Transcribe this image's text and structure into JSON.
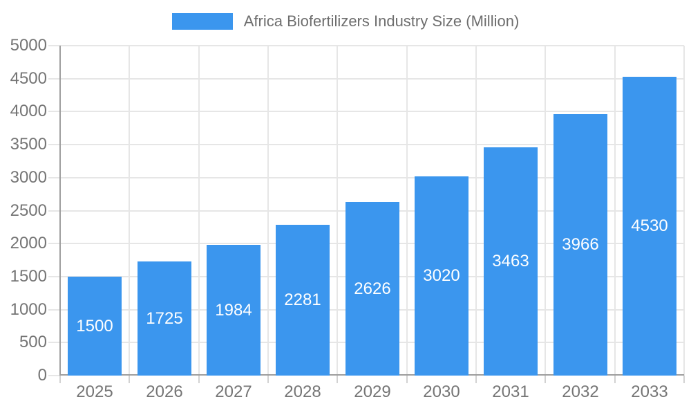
{
  "chart_data": {
    "type": "bar",
    "title": "Africa Biofertilizers Industry Size (Million)",
    "legend_position": "top",
    "categories": [
      "2025",
      "2026",
      "2027",
      "2028",
      "2029",
      "2030",
      "2031",
      "2032",
      "2033"
    ],
    "series": [
      {
        "name": "Africa Biofertilizers Industry Size (Million)",
        "values": [
          1500,
          1725,
          1984,
          2281,
          2626,
          3020,
          3463,
          3966,
          4530
        ]
      }
    ],
    "bar_labels_visible": true,
    "xlabel": "",
    "ylabel": "",
    "ylim": [
      0,
      5000
    ],
    "ytick_step": 500,
    "yticks": [
      0,
      500,
      1000,
      1500,
      2000,
      2500,
      3000,
      3500,
      4000,
      4500,
      5000
    ],
    "grid": true,
    "colors": {
      "bar": "#3b96ee",
      "grid_line": "#e6e6e6",
      "axis_line": "#9e9e9e",
      "below_axis_tick": "#d2d2d2",
      "tick_label": "#757575",
      "bar_label": "#ffffff",
      "legend_text": "#6e6e6e",
      "background": "#ffffff"
    }
  }
}
